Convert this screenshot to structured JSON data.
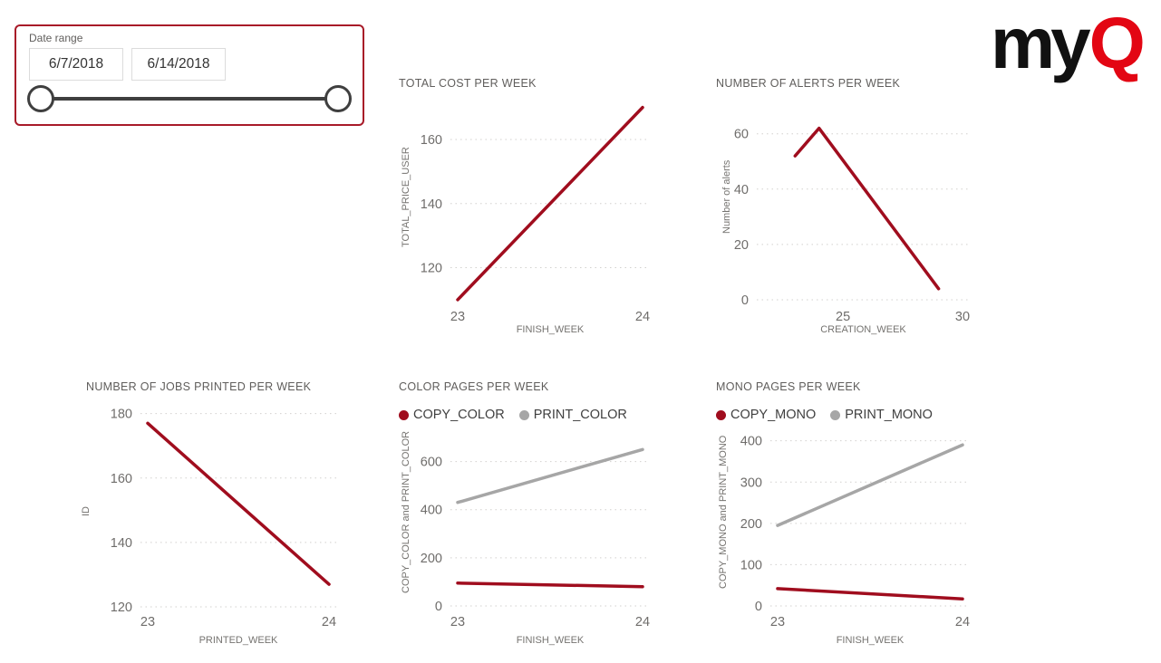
{
  "logo": {
    "my": "my",
    "q": "Q"
  },
  "colors": {
    "accent_red": "#a00d1e",
    "line_gray": "#a6a6a6",
    "logo_red": "#e30613",
    "slicer_border_red": "#a81a28",
    "title_gray": "#605e5c",
    "tick_gray": "#6f6d6b"
  },
  "slicer": {
    "label": "Date range",
    "start_date": "6/7/2018",
    "end_date": "6/14/2018"
  },
  "chart_data": [
    {
      "type": "line",
      "title": "TOTAL COST PER WEEK",
      "xlabel": "FINISH_WEEK",
      "ylabel": "TOTAL_PRICE_USER",
      "x": [
        23,
        24
      ],
      "x_ticks": [
        23,
        24
      ],
      "y_ticks": [
        120,
        140,
        160
      ],
      "xlim": [
        23,
        24
      ],
      "ylim": [
        108,
        173
      ],
      "grid": "dotted-horizontal",
      "legend": false,
      "series": [
        {
          "name": "TOTAL_PRICE_USER",
          "color": "#a00d1e",
          "values": [
            110,
            170
          ]
        }
      ]
    },
    {
      "type": "line",
      "title": "NUMBER OF ALERTS PER WEEK",
      "xlabel": "CREATION_WEEK",
      "ylabel": "Number of alerts",
      "x": [
        23,
        24,
        29
      ],
      "x_ticks": [
        25,
        30
      ],
      "y_ticks": [
        0,
        20,
        40,
        60
      ],
      "xlim": [
        21.7,
        30
      ],
      "ylim": [
        0,
        73
      ],
      "grid": "dotted-horizontal",
      "legend": false,
      "series": [
        {
          "name": "Number of alerts",
          "color": "#a00d1e",
          "values": [
            52,
            62,
            4
          ]
        }
      ]
    },
    {
      "type": "line",
      "title": "NUMBER OF JOBS PRINTED PER WEEK",
      "xlabel": "PRINTED_WEEK",
      "ylabel": "ID",
      "x": [
        23,
        24
      ],
      "x_ticks": [
        23,
        24
      ],
      "y_ticks": [
        120,
        140,
        160,
        180
      ],
      "xlim": [
        23,
        24
      ],
      "ylim": [
        120,
        183
      ],
      "grid": "dotted-horizontal",
      "legend": false,
      "series": [
        {
          "name": "ID",
          "color": "#a00d1e",
          "values": [
            177,
            127
          ]
        }
      ]
    },
    {
      "type": "line",
      "title": "COLOR PAGES PER WEEK",
      "xlabel": "FINISH_WEEK",
      "ylabel": "COPY_COLOR and PRINT_COLOR",
      "x": [
        23,
        24
      ],
      "x_ticks": [
        23,
        24
      ],
      "y_ticks": [
        0,
        200,
        400,
        600
      ],
      "xlim": [
        23,
        24
      ],
      "ylim": [
        0,
        700
      ],
      "grid": "dotted-horizontal",
      "legend": true,
      "series": [
        {
          "name": "COPY_COLOR",
          "color": "#a00d1e",
          "values": [
            95,
            80
          ]
        },
        {
          "name": "PRINT_COLOR",
          "color": "#a6a6a6",
          "values": [
            430,
            650
          ]
        }
      ]
    },
    {
      "type": "line",
      "title": "MONO PAGES PER WEEK",
      "xlabel": "FINISH_WEEK",
      "ylabel": "COPY_MONO and PRINT_MONO",
      "x": [
        23,
        24
      ],
      "x_ticks": [
        23,
        24
      ],
      "y_ticks": [
        0,
        100,
        200,
        300,
        400
      ],
      "xlim": [
        23,
        24
      ],
      "ylim": [
        0,
        430
      ],
      "grid": "dotted-horizontal",
      "legend": true,
      "series": [
        {
          "name": "COPY_MONO",
          "color": "#a00d1e",
          "values": [
            42,
            17
          ]
        },
        {
          "name": "PRINT_MONO",
          "color": "#a6a6a6",
          "values": [
            195,
            390
          ]
        }
      ]
    }
  ]
}
